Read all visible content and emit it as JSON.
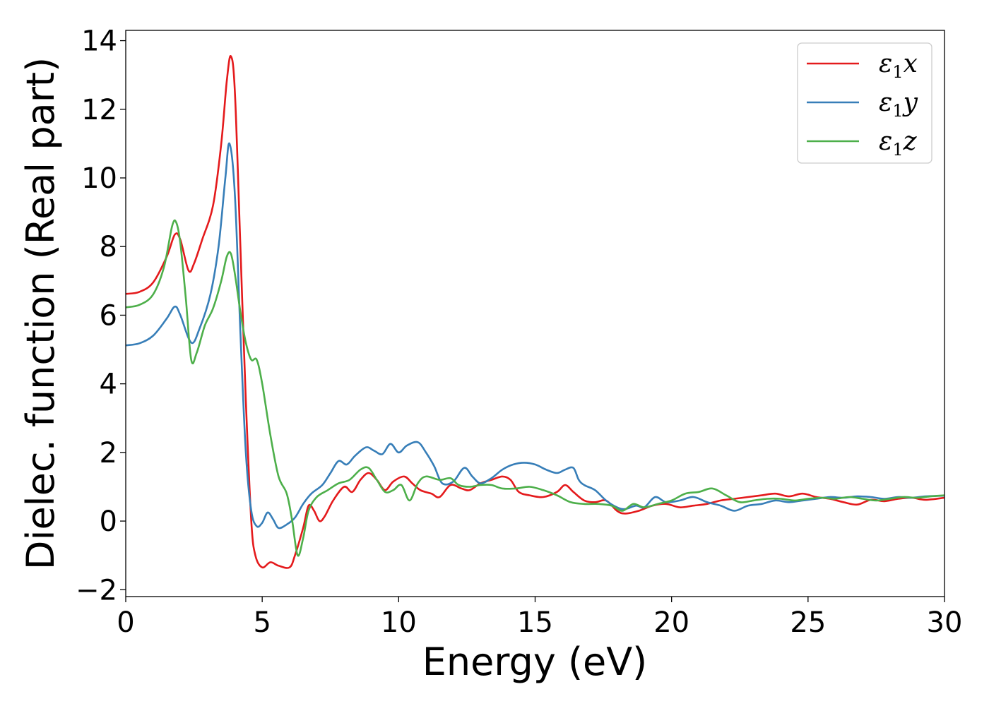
{
  "chart_data": {
    "type": "line",
    "xlabel": "Energy (eV)",
    "ylabel": "Dielec. function (Real part)",
    "xlim": [
      0,
      30
    ],
    "ylim": [
      -2.2,
      14.3
    ],
    "xticks": [
      0,
      5,
      10,
      15,
      20,
      25,
      30
    ],
    "yticks": [
      -2,
      0,
      2,
      4,
      6,
      8,
      10,
      12,
      14
    ],
    "ytick_labels": [
      "−2",
      "0",
      "2",
      "4",
      "6",
      "8",
      "10",
      "12",
      "14"
    ],
    "grid": false,
    "legend_position": "top-right",
    "series": [
      {
        "name": "ε1x",
        "legend": {
          "main": "ε",
          "sub": "1",
          "suffix": "x"
        },
        "color": "#e41a1c",
        "points": [
          [
            0,
            6.62
          ],
          [
            0.5,
            6.68
          ],
          [
            1.0,
            6.95
          ],
          [
            1.5,
            7.7
          ],
          [
            1.8,
            8.35
          ],
          [
            2.0,
            8.2
          ],
          [
            2.3,
            7.3
          ],
          [
            2.5,
            7.5
          ],
          [
            2.8,
            8.2
          ],
          [
            3.2,
            9.2
          ],
          [
            3.5,
            11.0
          ],
          [
            3.7,
            12.8
          ],
          [
            3.85,
            13.55
          ],
          [
            4.0,
            12.5
          ],
          [
            4.2,
            8.0
          ],
          [
            4.4,
            3.5
          ],
          [
            4.6,
            0.0
          ],
          [
            4.75,
            -1.0
          ],
          [
            5.0,
            -1.35
          ],
          [
            5.3,
            -1.2
          ],
          [
            5.6,
            -1.3
          ],
          [
            6.0,
            -1.35
          ],
          [
            6.2,
            -1.0
          ],
          [
            6.5,
            -0.2
          ],
          [
            6.7,
            0.45
          ],
          [
            6.9,
            0.3
          ],
          [
            7.1,
            0.0
          ],
          [
            7.3,
            0.15
          ],
          [
            7.6,
            0.6
          ],
          [
            8.0,
            1.0
          ],
          [
            8.3,
            0.85
          ],
          [
            8.6,
            1.2
          ],
          [
            8.9,
            1.4
          ],
          [
            9.2,
            1.2
          ],
          [
            9.5,
            0.9
          ],
          [
            9.8,
            1.15
          ],
          [
            10.2,
            1.3
          ],
          [
            10.5,
            1.1
          ],
          [
            10.8,
            0.9
          ],
          [
            11.2,
            0.8
          ],
          [
            11.5,
            0.7
          ],
          [
            11.9,
            1.05
          ],
          [
            12.3,
            0.95
          ],
          [
            12.6,
            0.9
          ],
          [
            13.0,
            1.1
          ],
          [
            13.4,
            1.2
          ],
          [
            13.8,
            1.3
          ],
          [
            14.1,
            1.2
          ],
          [
            14.4,
            0.85
          ],
          [
            14.8,
            0.75
          ],
          [
            15.3,
            0.7
          ],
          [
            15.8,
            0.85
          ],
          [
            16.1,
            1.05
          ],
          [
            16.4,
            0.85
          ],
          [
            16.8,
            0.6
          ],
          [
            17.2,
            0.55
          ],
          [
            17.6,
            0.6
          ],
          [
            18.0,
            0.3
          ],
          [
            18.3,
            0.22
          ],
          [
            18.8,
            0.3
          ],
          [
            19.3,
            0.45
          ],
          [
            19.8,
            0.5
          ],
          [
            20.3,
            0.4
          ],
          [
            20.8,
            0.45
          ],
          [
            21.3,
            0.5
          ],
          [
            21.8,
            0.6
          ],
          [
            22.3,
            0.65
          ],
          [
            22.8,
            0.7
          ],
          [
            23.3,
            0.75
          ],
          [
            23.8,
            0.8
          ],
          [
            24.3,
            0.72
          ],
          [
            24.8,
            0.8
          ],
          [
            25.3,
            0.7
          ],
          [
            25.8,
            0.65
          ],
          [
            26.3,
            0.55
          ],
          [
            26.8,
            0.48
          ],
          [
            27.3,
            0.62
          ],
          [
            27.8,
            0.58
          ],
          [
            28.3,
            0.65
          ],
          [
            28.8,
            0.68
          ],
          [
            29.3,
            0.62
          ],
          [
            30.0,
            0.68
          ]
        ]
      },
      {
        "name": "ε1y",
        "legend": {
          "main": "ε",
          "sub": "1",
          "suffix": "y"
        },
        "color": "#377eb8",
        "points": [
          [
            0,
            5.12
          ],
          [
            0.5,
            5.18
          ],
          [
            1.0,
            5.4
          ],
          [
            1.5,
            5.9
          ],
          [
            1.8,
            6.25
          ],
          [
            2.0,
            6.0
          ],
          [
            2.4,
            5.2
          ],
          [
            2.7,
            5.6
          ],
          [
            3.1,
            6.6
          ],
          [
            3.4,
            8.0
          ],
          [
            3.65,
            10.0
          ],
          [
            3.8,
            11.0
          ],
          [
            4.0,
            9.5
          ],
          [
            4.2,
            5.5
          ],
          [
            4.4,
            2.0
          ],
          [
            4.6,
            0.3
          ],
          [
            4.8,
            -0.15
          ],
          [
            5.0,
            -0.05
          ],
          [
            5.2,
            0.25
          ],
          [
            5.4,
            0.05
          ],
          [
            5.6,
            -0.2
          ],
          [
            5.9,
            -0.1
          ],
          [
            6.2,
            0.1
          ],
          [
            6.5,
            0.5
          ],
          [
            6.8,
            0.8
          ],
          [
            7.2,
            1.05
          ],
          [
            7.5,
            1.4
          ],
          [
            7.8,
            1.75
          ],
          [
            8.1,
            1.65
          ],
          [
            8.4,
            1.9
          ],
          [
            8.8,
            2.15
          ],
          [
            9.1,
            2.05
          ],
          [
            9.4,
            1.95
          ],
          [
            9.7,
            2.25
          ],
          [
            10.0,
            2.0
          ],
          [
            10.3,
            2.2
          ],
          [
            10.7,
            2.3
          ],
          [
            11.0,
            2.0
          ],
          [
            11.3,
            1.6
          ],
          [
            11.6,
            1.1
          ],
          [
            12.0,
            1.15
          ],
          [
            12.4,
            1.55
          ],
          [
            12.7,
            1.3
          ],
          [
            13.0,
            1.1
          ],
          [
            13.4,
            1.25
          ],
          [
            13.8,
            1.5
          ],
          [
            14.2,
            1.65
          ],
          [
            14.6,
            1.7
          ],
          [
            15.0,
            1.65
          ],
          [
            15.4,
            1.5
          ],
          [
            15.8,
            1.4
          ],
          [
            16.1,
            1.5
          ],
          [
            16.4,
            1.55
          ],
          [
            16.6,
            1.2
          ],
          [
            16.8,
            1.05
          ],
          [
            17.2,
            0.9
          ],
          [
            17.6,
            0.6
          ],
          [
            18.0,
            0.4
          ],
          [
            18.3,
            0.35
          ],
          [
            18.7,
            0.45
          ],
          [
            19.0,
            0.4
          ],
          [
            19.4,
            0.7
          ],
          [
            19.8,
            0.55
          ],
          [
            20.3,
            0.6
          ],
          [
            20.8,
            0.7
          ],
          [
            21.3,
            0.55
          ],
          [
            21.8,
            0.45
          ],
          [
            22.3,
            0.3
          ],
          [
            22.8,
            0.45
          ],
          [
            23.3,
            0.5
          ],
          [
            23.8,
            0.6
          ],
          [
            24.3,
            0.55
          ],
          [
            24.8,
            0.6
          ],
          [
            25.3,
            0.65
          ],
          [
            25.8,
            0.7
          ],
          [
            26.3,
            0.68
          ],
          [
            26.8,
            0.72
          ],
          [
            27.3,
            0.7
          ],
          [
            27.8,
            0.65
          ],
          [
            28.3,
            0.7
          ],
          [
            28.8,
            0.68
          ],
          [
            29.3,
            0.72
          ],
          [
            30.0,
            0.74
          ]
        ]
      },
      {
        "name": "ε1z",
        "legend": {
          "main": "ε",
          "sub": "1",
          "suffix": "z"
        },
        "color": "#4daf4a",
        "points": [
          [
            0,
            6.23
          ],
          [
            0.5,
            6.3
          ],
          [
            1.0,
            6.6
          ],
          [
            1.4,
            7.4
          ],
          [
            1.7,
            8.6
          ],
          [
            1.85,
            8.7
          ],
          [
            2.0,
            8.1
          ],
          [
            2.2,
            6.5
          ],
          [
            2.4,
            4.7
          ],
          [
            2.6,
            4.9
          ],
          [
            2.9,
            5.7
          ],
          [
            3.2,
            6.2
          ],
          [
            3.5,
            7.0
          ],
          [
            3.7,
            7.7
          ],
          [
            3.85,
            7.8
          ],
          [
            4.0,
            7.2
          ],
          [
            4.2,
            6.1
          ],
          [
            4.4,
            5.2
          ],
          [
            4.6,
            4.7
          ],
          [
            4.8,
            4.7
          ],
          [
            5.0,
            4.0
          ],
          [
            5.3,
            2.5
          ],
          [
            5.6,
            1.3
          ],
          [
            5.9,
            0.8
          ],
          [
            6.1,
            0.0
          ],
          [
            6.3,
            -1.0
          ],
          [
            6.5,
            -0.5
          ],
          [
            6.7,
            0.3
          ],
          [
            7.0,
            0.7
          ],
          [
            7.4,
            0.9
          ],
          [
            7.8,
            1.1
          ],
          [
            8.2,
            1.2
          ],
          [
            8.6,
            1.5
          ],
          [
            8.9,
            1.55
          ],
          [
            9.2,
            1.2
          ],
          [
            9.5,
            0.85
          ],
          [
            9.8,
            0.9
          ],
          [
            10.1,
            1.05
          ],
          [
            10.4,
            0.6
          ],
          [
            10.7,
            1.1
          ],
          [
            11.0,
            1.3
          ],
          [
            11.5,
            1.2
          ],
          [
            11.9,
            1.25
          ],
          [
            12.2,
            1.05
          ],
          [
            12.6,
            1.0
          ],
          [
            13.0,
            1.05
          ],
          [
            13.4,
            1.05
          ],
          [
            13.8,
            0.95
          ],
          [
            14.3,
            0.95
          ],
          [
            14.8,
            1.0
          ],
          [
            15.3,
            0.9
          ],
          [
            15.8,
            0.75
          ],
          [
            16.3,
            0.55
          ],
          [
            16.8,
            0.5
          ],
          [
            17.3,
            0.5
          ],
          [
            17.8,
            0.45
          ],
          [
            18.2,
            0.3
          ],
          [
            18.6,
            0.5
          ],
          [
            19.0,
            0.4
          ],
          [
            19.5,
            0.5
          ],
          [
            20.0,
            0.6
          ],
          [
            20.5,
            0.8
          ],
          [
            21.0,
            0.85
          ],
          [
            21.5,
            0.95
          ],
          [
            22.0,
            0.75
          ],
          [
            22.5,
            0.55
          ],
          [
            23.0,
            0.6
          ],
          [
            23.5,
            0.65
          ],
          [
            24.0,
            0.65
          ],
          [
            24.5,
            0.6
          ],
          [
            25.0,
            0.65
          ],
          [
            25.5,
            0.68
          ],
          [
            26.0,
            0.65
          ],
          [
            26.5,
            0.7
          ],
          [
            27.0,
            0.65
          ],
          [
            27.5,
            0.6
          ],
          [
            28.0,
            0.65
          ],
          [
            28.5,
            0.7
          ],
          [
            29.0,
            0.68
          ],
          [
            29.5,
            0.72
          ],
          [
            30.0,
            0.75
          ]
        ]
      }
    ]
  }
}
